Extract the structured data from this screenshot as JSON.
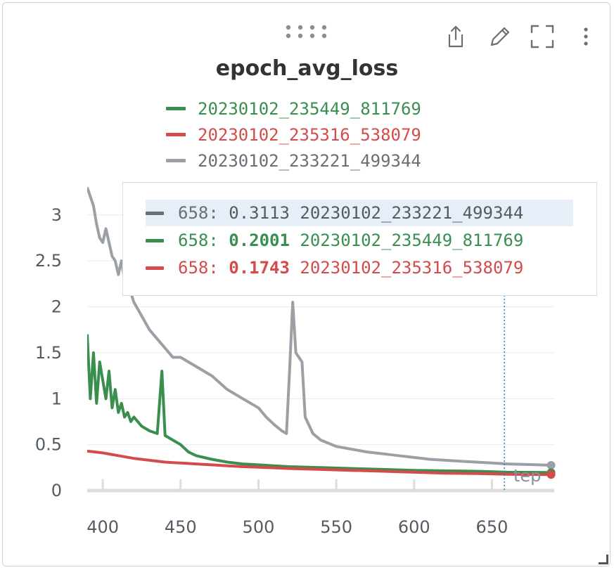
{
  "toolbar": {
    "drag_icon": "drag-dots-icon",
    "share_icon": "share-icon",
    "edit_icon": "pencil-icon",
    "fullscreen_icon": "fullscreen-icon",
    "more_icon": "more-vertical-icon"
  },
  "colors": {
    "green": "#3a8f4f",
    "red": "#d44b4b",
    "gray": "#9aa0a6",
    "gray_dark": "#6a6f75",
    "axis": "#dddddd",
    "text": "#555b63"
  },
  "legend": [
    {
      "label": "20230102_235449_811769",
      "color": "#3a8f4f"
    },
    {
      "label": "20230102_235316_538079",
      "color": "#d44b4b"
    },
    {
      "label": "20230102_233221_499344",
      "color": "#9aa0a6"
    }
  ],
  "tooltip": {
    "rows": [
      {
        "step": "658:",
        "value": "0.3113",
        "run": "20230102_233221_499344",
        "color": "#6a6f75",
        "bold": false,
        "highlight": true
      },
      {
        "step": "658:",
        "value": "0.2001",
        "run": "20230102_235449_811769",
        "color": "#3a8f4f",
        "bold": true,
        "highlight": false
      },
      {
        "step": "658:",
        "value": "0.1743",
        "run": "20230102_235316_538079",
        "color": "#d44b4b",
        "bold": true,
        "highlight": false
      }
    ]
  },
  "chart_data": {
    "type": "line",
    "title": "epoch_avg_loss",
    "xlabel": "Step",
    "ylabel": "",
    "xlim": [
      390,
      690
    ],
    "ylim": [
      0,
      3.35
    ],
    "xticks": [
      400,
      450,
      500,
      550,
      600,
      650
    ],
    "yticks": [
      0,
      0.5,
      1,
      1.5,
      2,
      2.5,
      3
    ],
    "ytick_labels": [
      "0",
      "0.5",
      "1",
      "1.5",
      "2",
      "2.5",
      "3"
    ],
    "hover_step": 658,
    "grid": true,
    "series": [
      {
        "name": "20230102_233221_499344",
        "color": "#9aa0a6",
        "x": [
          390,
          392,
          394,
          396,
          398,
          400,
          402,
          404,
          406,
          408,
          410,
          412,
          414,
          416,
          418,
          420,
          425,
          430,
          435,
          440,
          445,
          450,
          455,
          460,
          470,
          480,
          490,
          500,
          505,
          510,
          515,
          518,
          520,
          522,
          524,
          526,
          528,
          530,
          535,
          540,
          550,
          560,
          570,
          580,
          590,
          600,
          610,
          620,
          630,
          640,
          650,
          660,
          670,
          680,
          688
        ],
        "y": [
          3.3,
          3.2,
          3.1,
          2.9,
          2.75,
          2.7,
          2.85,
          2.7,
          2.55,
          2.5,
          2.35,
          2.5,
          2.3,
          2.25,
          2.15,
          2.05,
          1.9,
          1.75,
          1.65,
          1.55,
          1.45,
          1.45,
          1.4,
          1.35,
          1.25,
          1.1,
          1.0,
          0.9,
          0.8,
          0.72,
          0.65,
          0.62,
          1.3,
          2.05,
          1.5,
          1.45,
          1.4,
          0.8,
          0.62,
          0.55,
          0.48,
          0.45,
          0.42,
          0.4,
          0.38,
          0.36,
          0.34,
          0.33,
          0.32,
          0.31,
          0.3,
          0.29,
          0.285,
          0.28,
          0.275
        ]
      },
      {
        "name": "20230102_235449_811769",
        "color": "#3a8f4f",
        "x": [
          390,
          392,
          394,
          396,
          398,
          400,
          402,
          404,
          406,
          408,
          410,
          412,
          414,
          416,
          418,
          420,
          425,
          430,
          435,
          438,
          440,
          445,
          450,
          455,
          460,
          470,
          480,
          490,
          500,
          520,
          540,
          560,
          580,
          600,
          620,
          640,
          660,
          680,
          688
        ],
        "y": [
          1.7,
          1.0,
          1.5,
          0.95,
          1.4,
          1.2,
          1.0,
          1.3,
          0.9,
          1.1,
          0.85,
          0.95,
          0.8,
          0.85,
          0.75,
          0.8,
          0.7,
          0.65,
          0.62,
          1.3,
          0.6,
          0.55,
          0.5,
          0.42,
          0.38,
          0.34,
          0.31,
          0.29,
          0.28,
          0.26,
          0.25,
          0.24,
          0.23,
          0.22,
          0.215,
          0.21,
          0.2,
          0.198,
          0.196
        ]
      },
      {
        "name": "20230102_235316_538079",
        "color": "#d44b4b",
        "x": [
          390,
          400,
          410,
          420,
          430,
          440,
          450,
          460,
          470,
          480,
          490,
          500,
          520,
          540,
          560,
          580,
          600,
          620,
          640,
          660,
          680,
          688
        ],
        "y": [
          0.43,
          0.41,
          0.38,
          0.35,
          0.33,
          0.31,
          0.3,
          0.29,
          0.28,
          0.27,
          0.26,
          0.255,
          0.24,
          0.23,
          0.22,
          0.21,
          0.2,
          0.19,
          0.185,
          0.178,
          0.175,
          0.174
        ]
      }
    ]
  }
}
